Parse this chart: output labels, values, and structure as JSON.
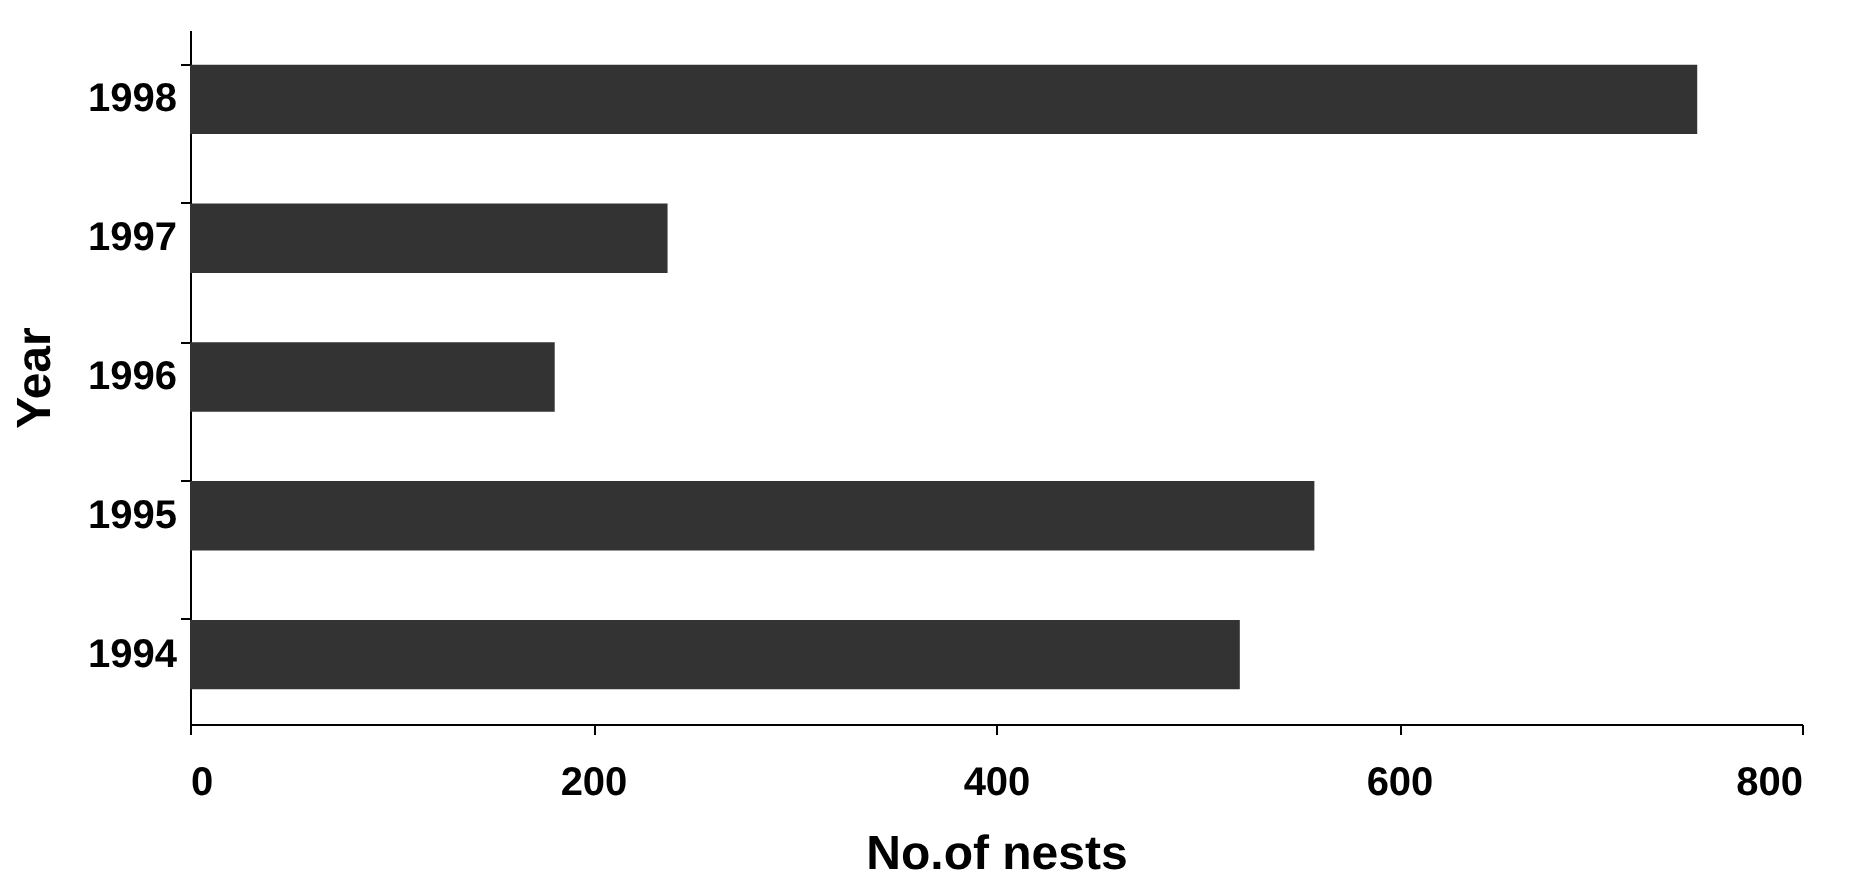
{
  "chart_data": {
    "type": "bar",
    "orientation": "horizontal",
    "xlabel": "No.of nests",
    "ylabel": "Year",
    "categories": [
      "1998",
      "1997",
      "1996",
      "1995",
      "1994"
    ],
    "values": [
      748,
      237,
      181,
      558,
      521
    ],
    "color": "#333333",
    "xlim": [
      0,
      800
    ],
    "xticks": [
      0,
      200,
      400,
      600,
      800
    ],
    "grid": false
  }
}
